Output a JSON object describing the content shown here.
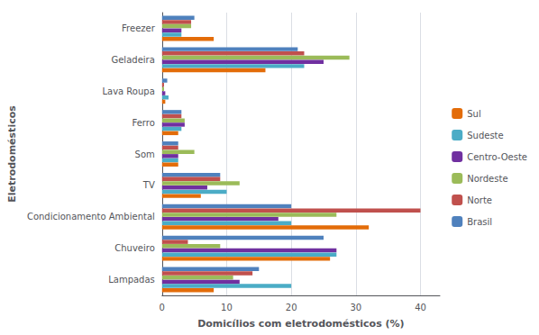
{
  "chart_data": {
    "type": "bar",
    "orientation": "horizontal",
    "categories": [
      "Lampadas",
      "Chuveiro",
      "Condicionamento Ambiental",
      "TV",
      "Som",
      "Ferro",
      "Lava Roupa",
      "Geladeira",
      "Freezer"
    ],
    "series": [
      {
        "name": "Brasil",
        "color": "#4F81BD",
        "values": [
          15,
          25,
          20,
          9,
          2.5,
          3,
          0.8,
          21,
          5
        ]
      },
      {
        "name": "Norte",
        "color": "#C0504D",
        "values": [
          14,
          4,
          40,
          9,
          2.5,
          3,
          0.3,
          22,
          4.5
        ]
      },
      {
        "name": "Nordeste",
        "color": "#9BBB59",
        "values": [
          11,
          9,
          27,
          12,
          5,
          3.5,
          0.3,
          29,
          4.5
        ]
      },
      {
        "name": "Centro-Oeste",
        "color": "#7030A0",
        "values": [
          12,
          27,
          18,
          7,
          2.5,
          3.5,
          0.5,
          25,
          3
        ]
      },
      {
        "name": "Sudeste",
        "color": "#4BACC6",
        "values": [
          20,
          27,
          20,
          10,
          2.5,
          3,
          1,
          22,
          3
        ]
      },
      {
        "name": "Sul",
        "color": "#E36C09",
        "values": [
          8,
          26,
          32,
          6,
          2.5,
          2.5,
          0.5,
          16,
          8
        ]
      }
    ],
    "xlabel": "Domicílios com eletrodomésticos (%)",
    "ylabel": "Eletrodomésticos",
    "xlim": [
      0,
      43
    ],
    "xticks": [
      0,
      10,
      20,
      30,
      40
    ],
    "grid": true,
    "legend": "right"
  }
}
